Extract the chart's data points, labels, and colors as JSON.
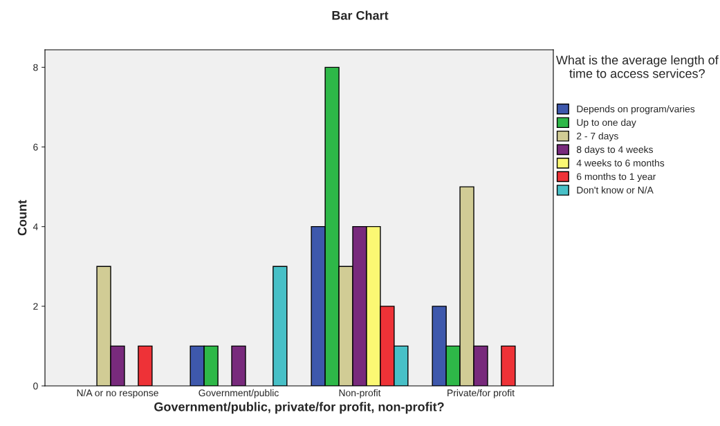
{
  "chart_data": {
    "type": "bar",
    "title": "Bar Chart",
    "xlabel": "Government/public, private/for profit, non-profit?",
    "ylabel": "Count",
    "legend_title": "What is the average length of time to access services?",
    "categories": [
      "N/A or no response",
      "Government/public",
      "Non-profit",
      "Private/for profit"
    ],
    "series": [
      {
        "name": "Depends on program/varies",
        "color": "#3e58ac",
        "values": [
          null,
          1,
          4,
          2
        ]
      },
      {
        "name": "Up to one day",
        "color": "#2eb848",
        "values": [
          null,
          1,
          8,
          1
        ]
      },
      {
        "name": "2 - 7 days",
        "color": "#d1cc95",
        "values": [
          3,
          null,
          3,
          5
        ]
      },
      {
        "name": "8 days to 4 weeks",
        "color": "#782a7c",
        "values": [
          1,
          1,
          4,
          1
        ]
      },
      {
        "name": "4 weeks to 6 months",
        "color": "#fbf873",
        "values": [
          null,
          null,
          4,
          null
        ]
      },
      {
        "name": "6 months to 1 year",
        "color": "#ee3237",
        "values": [
          1,
          null,
          2,
          1
        ]
      },
      {
        "name": "Don't know or N/A",
        "color": "#48c0c7",
        "values": [
          null,
          3,
          1,
          null
        ]
      }
    ],
    "ylim": [
      0,
      8.44
    ],
    "yticks": [
      0,
      2,
      4,
      6,
      8
    ],
    "grid": false,
    "legend": "right"
  }
}
